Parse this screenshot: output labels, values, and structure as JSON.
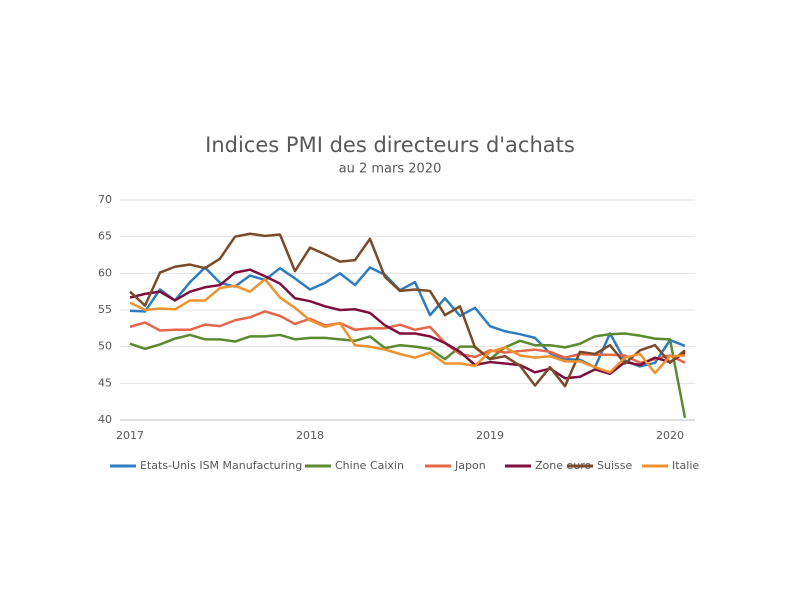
{
  "chart_data": {
    "type": "line",
    "title": "Indices PMI des directeurs d'achats",
    "subtitle": "au 2 mars 2020",
    "categories": [
      "2017",
      null,
      null,
      null,
      null,
      null,
      null,
      null,
      null,
      null,
      null,
      null,
      "2018",
      null,
      null,
      null,
      null,
      null,
      null,
      null,
      null,
      null,
      null,
      null,
      "2019",
      null,
      null,
      null,
      null,
      null,
      null,
      null,
      null,
      null,
      null,
      null,
      "2020",
      null
    ],
    "series": [
      {
        "name": "Etats-Unis ISM Manufacturing",
        "color": "#2e7dc0",
        "values": [
          54.9,
          54.8,
          57.8,
          56.3,
          58.8,
          60.8,
          58.7,
          58.2,
          59.7,
          59.1,
          60.7,
          59.3,
          57.8,
          58.7,
          60.0,
          58.4,
          60.8,
          59.8,
          57.7,
          58.8,
          54.3,
          56.6,
          54.2,
          55.3,
          52.8,
          52.1,
          51.7,
          51.2,
          49.1,
          48.3,
          48.2,
          47.2,
          51.8,
          48.1,
          47.3,
          47.8,
          50.9,
          50.1
        ]
      },
      {
        "name": "Chine Caixin",
        "color": "#5b8a2f",
        "values": [
          50.4,
          49.7,
          50.3,
          51.1,
          51.6,
          51.0,
          51.0,
          50.7,
          51.4,
          51.4,
          51.6,
          51.0,
          51.2,
          51.2,
          51.0,
          50.8,
          51.4,
          49.8,
          50.2,
          50.0,
          49.7,
          48.3,
          50.0,
          50.0,
          48.3,
          49.9,
          50.8,
          50.2,
          50.2,
          49.9,
          50.4,
          51.4,
          51.7,
          51.8,
          51.5,
          51.1,
          51.0,
          40.3
        ]
      },
      {
        "name": "Japon",
        "color": "#e4674a",
        "values": [
          52.7,
          53.3,
          52.2,
          52.3,
          52.3,
          53.0,
          52.8,
          53.6,
          54.0,
          54.8,
          54.2,
          53.1,
          53.8,
          52.9,
          53.2,
          52.3,
          52.5,
          52.5,
          53.0,
          52.3,
          52.7,
          50.5,
          49.0,
          48.6,
          49.5,
          49.2,
          49.4,
          49.6,
          49.3,
          48.5,
          49.0,
          48.9,
          48.9,
          48.8,
          47.8,
          48.3,
          48.8,
          47.8
        ]
      },
      {
        "name": "Zone euro",
        "color": "#7d0f3e",
        "values": [
          56.7,
          57.2,
          57.5,
          56.3,
          57.5,
          58.1,
          58.4,
          60.1,
          60.5,
          59.6,
          58.6,
          56.6,
          56.2,
          55.5,
          55.0,
          55.1,
          54.6,
          52.9,
          51.8,
          51.8,
          51.4,
          50.5,
          49.3,
          47.5,
          47.9,
          47.7,
          47.5,
          46.5,
          47.0,
          45.7,
          45.9,
          46.9,
          46.3,
          47.9,
          47.5,
          48.5,
          47.9,
          49.2
        ]
      },
      {
        "name": "Suisse",
        "color": "#7b4a28",
        "values": [
          57.5,
          55.6,
          60.1,
          60.9,
          61.2,
          60.7,
          62.0,
          65.0,
          65.4,
          65.1,
          65.3,
          60.3,
          63.5,
          62.6,
          61.6,
          61.8,
          64.7,
          59.5,
          57.6,
          57.8,
          57.6,
          54.3,
          55.5,
          49.9,
          48.3,
          48.7,
          47.4,
          44.7,
          47.2,
          44.6,
          49.3,
          49.0,
          50.2,
          47.7,
          49.5,
          50.2,
          47.8,
          49.5
        ]
      },
      {
        "name": "Italie",
        "color": "#f0922f",
        "values": [
          56.0,
          55.0,
          55.2,
          55.1,
          56.3,
          56.3,
          58.0,
          58.3,
          57.5,
          59.2,
          56.7,
          55.3,
          53.6,
          52.7,
          53.2,
          50.2,
          50.0,
          49.6,
          49.0,
          48.5,
          49.2,
          47.7,
          47.7,
          47.4,
          49.3,
          49.9,
          48.8,
          48.5,
          48.7,
          48.0,
          48.0,
          47.2,
          46.5,
          48.5,
          49.0,
          46.4,
          48.7,
          48.8
        ]
      }
    ],
    "ylim": [
      40,
      70
    ],
    "yticks": [
      40,
      45,
      50,
      55,
      60,
      65,
      70
    ],
    "grid": true
  }
}
